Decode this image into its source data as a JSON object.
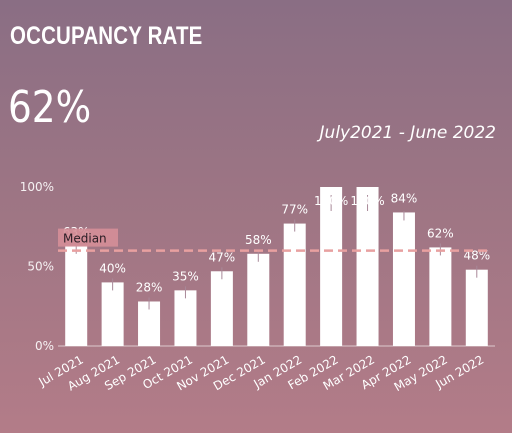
{
  "header": {
    "title": "OCCUPANCY RATE",
    "kpi": "62%",
    "period": "July2021 - June 2022"
  },
  "chart_data": {
    "type": "bar",
    "categories": [
      "Jul 2021",
      "Aug 2021",
      "Sep 2021",
      "Oct 2021",
      "Nov 2021",
      "Dec 2021",
      "Jan 2022",
      "Feb 2022",
      "Mar 2022",
      "Apr 2022",
      "May 2022",
      "Jun 2022"
    ],
    "values": [
      63,
      40,
      28,
      35,
      47,
      58,
      77,
      100,
      100,
      84,
      62,
      48
    ],
    "data_labels": [
      "63%",
      "40%",
      "28%",
      "35%",
      "47%",
      "58%",
      "77%",
      "100%",
      "100%",
      "84%",
      "62%",
      "48%"
    ],
    "y_ticks": [
      {
        "value": 0,
        "label": "0%"
      },
      {
        "value": 50,
        "label": "50%"
      },
      {
        "value": 100,
        "label": "100%"
      }
    ],
    "ylim": [
      0,
      100
    ],
    "reference_line": {
      "label": "Median",
      "value": 60,
      "color": "#e8a0a0"
    },
    "bar_color": "#ffffff",
    "grid": false
  }
}
